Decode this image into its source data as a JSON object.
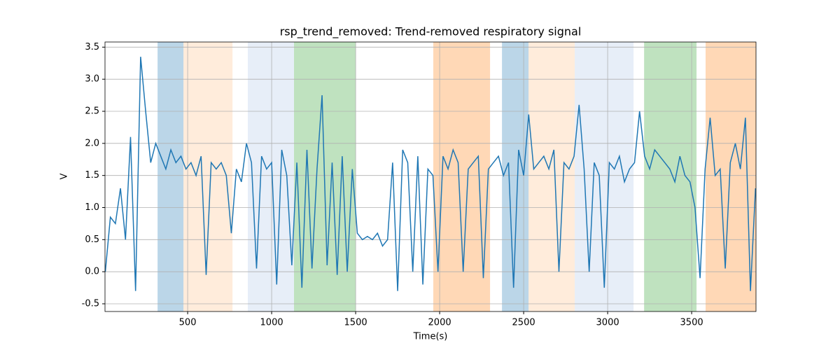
{
  "chart_data": {
    "type": "line",
    "title": "rsp_trend_removed: Trend-removed respiratory signal",
    "x_label": "Time(s)",
    "y_label": "V",
    "xlim": [
      8,
      3883
    ],
    "ylim": [
      -0.62,
      3.58
    ],
    "xticks": [
      500,
      1000,
      1500,
      2000,
      2500,
      3000,
      3500
    ],
    "yticks": [
      -0.5,
      {
        "value": 0,
        "label": "0.0"
      },
      0.5,
      {
        "value": 1,
        "label": "1.0"
      },
      1.5,
      {
        "value": 2,
        "label": "2.0"
      },
      2.5,
      {
        "value": 3,
        "label": "3.0"
      },
      3.5
    ],
    "grid": true,
    "spans": [
      {
        "start": 321,
        "end": 475,
        "color": "#1f77b4",
        "alpha": 0.3
      },
      {
        "start": 475,
        "end": 767,
        "color": "#ff7f0e",
        "alpha": 0.15
      },
      {
        "start": 858,
        "end": 1133,
        "color": "#aec7e8",
        "alpha": 0.3
      },
      {
        "start": 1133,
        "end": 1500,
        "color": "#2ca02c",
        "alpha": 0.3
      },
      {
        "start": 1962,
        "end": 2300,
        "color": "#ff7f0e",
        "alpha": 0.3
      },
      {
        "start": 2371,
        "end": 2529,
        "color": "#1f77b4",
        "alpha": 0.3
      },
      {
        "start": 2529,
        "end": 2804,
        "color": "#ff7f0e",
        "alpha": 0.15
      },
      {
        "start": 2804,
        "end": 3154,
        "color": "#aec7e8",
        "alpha": 0.3
      },
      {
        "start": 3217,
        "end": 3529,
        "color": "#2ca02c",
        "alpha": 0.3
      },
      {
        "start": 3583,
        "end": 3883,
        "color": "#ff7f0e",
        "alpha": 0.3
      }
    ],
    "x": [
      10,
      40,
      70,
      100,
      130,
      160,
      190,
      220,
      250,
      280,
      310,
      340,
      370,
      400,
      430,
      460,
      490,
      520,
      550,
      580,
      610,
      640,
      670,
      700,
      730,
      760,
      790,
      820,
      850,
      880,
      910,
      940,
      970,
      1000,
      1030,
      1060,
      1090,
      1120,
      1150,
      1180,
      1210,
      1240,
      1270,
      1300,
      1330,
      1360,
      1390,
      1420,
      1450,
      1480,
      1510,
      1540,
      1570,
      1600,
      1630,
      1660,
      1690,
      1720,
      1750,
      1780,
      1810,
      1840,
      1870,
      1900,
      1930,
      1960,
      1990,
      2020,
      2050,
      2080,
      2110,
      2140,
      2170,
      2200,
      2230,
      2260,
      2290,
      2320,
      2350,
      2380,
      2410,
      2440,
      2470,
      2500,
      2530,
      2560,
      2590,
      2620,
      2650,
      2680,
      2710,
      2740,
      2770,
      2800,
      2830,
      2860,
      2890,
      2920,
      2950,
      2980,
      3010,
      3040,
      3070,
      3100,
      3130,
      3160,
      3190,
      3220,
      3250,
      3280,
      3310,
      3340,
      3370,
      3400,
      3430,
      3460,
      3490,
      3520,
      3550,
      3580,
      3610,
      3640,
      3670,
      3700,
      3730,
      3760,
      3790,
      3820,
      3850,
      3880
    ],
    "series": [
      {
        "color": "#1f77b4",
        "values": [
          0.0,
          0.85,
          0.75,
          1.3,
          0.5,
          2.1,
          -0.3,
          3.35,
          2.5,
          1.7,
          2.0,
          1.8,
          1.6,
          1.9,
          1.7,
          1.8,
          1.6,
          1.7,
          1.5,
          1.8,
          -0.05,
          1.7,
          1.6,
          1.7,
          1.5,
          0.6,
          1.6,
          1.4,
          2.0,
          1.7,
          0.05,
          1.8,
          1.6,
          1.7,
          -0.2,
          1.9,
          1.5,
          0.1,
          1.7,
          -0.25,
          1.9,
          0.05,
          1.6,
          2.75,
          0.1,
          1.7,
          -0.05,
          1.8,
          0.0,
          1.6,
          0.6,
          0.5,
          0.55,
          0.5,
          0.6,
          0.4,
          0.5,
          1.7,
          -0.3,
          1.9,
          1.7,
          0.0,
          1.8,
          -0.2,
          1.6,
          1.5,
          0.0,
          1.8,
          1.6,
          1.9,
          1.7,
          0.0,
          1.6,
          1.7,
          1.8,
          -0.1,
          1.6,
          1.7,
          1.8,
          1.5,
          1.7,
          -0.25,
          1.9,
          1.5,
          2.45,
          1.6,
          1.7,
          1.8,
          1.6,
          1.9,
          0.0,
          1.7,
          1.6,
          1.8,
          2.6,
          1.6,
          0.0,
          1.7,
          1.5,
          -0.25,
          1.7,
          1.6,
          1.8,
          1.4,
          1.6,
          1.7,
          2.5,
          1.8,
          1.6,
          1.9,
          1.8,
          1.7,
          1.6,
          1.4,
          1.8,
          1.5,
          1.4,
          1.0,
          -0.1,
          1.6,
          2.4,
          1.5,
          1.6,
          0.05,
          1.7,
          2.0,
          1.6,
          2.4,
          -0.3,
          1.3
        ]
      }
    ]
  }
}
